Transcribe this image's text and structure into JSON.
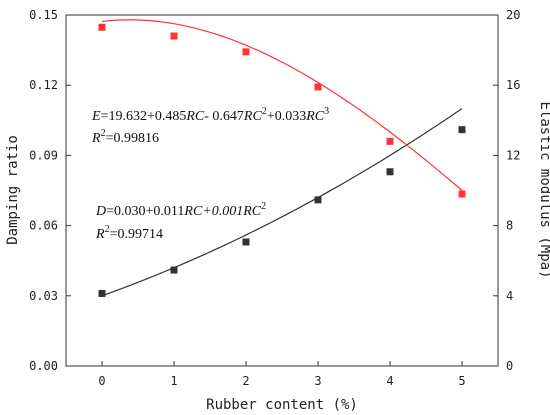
{
  "chart_data": {
    "type": "line",
    "x": [
      0,
      1,
      2,
      3,
      4,
      5
    ],
    "x_ticks": [
      "0",
      "1",
      "2",
      "3",
      "4",
      "5"
    ],
    "xlabel": "Rubber content (%)",
    "xlim": [
      -0.5,
      5.5
    ],
    "ylabel_left": "Damping ratio",
    "ylim_left": [
      0.0,
      0.15
    ],
    "y_ticks_left": [
      "0.00",
      "0.03",
      "0.06",
      "0.09",
      "0.12",
      "0.15"
    ],
    "ylabel_right": "Elastic modulus (Mpa)",
    "ylim_right": [
      0,
      20
    ],
    "y_ticks_right": [
      "0",
      "4",
      "8",
      "12",
      "16",
      "20"
    ],
    "grid": false,
    "series": [
      {
        "axis": "left",
        "color": "#333333",
        "marker": "square",
        "values": [
          0.031,
          0.041,
          0.053,
          0.071,
          0.083,
          0.101
        ],
        "fit_coeffs": [
          0.03,
          0.011,
          0.001
        ]
      },
      {
        "axis": "right",
        "color": "#ff3333",
        "marker": "square",
        "values": [
          19.3,
          18.8,
          17.9,
          15.9,
          12.8,
          9.8
        ],
        "fit_coeffs": [
          19.632,
          0.485,
          -0.647,
          0.033
        ]
      }
    ],
    "annotations": {
      "eq_e": {
        "var": "E",
        "p1": "=19.632+0.485",
        "rc1": "RC",
        "p2": "- 0.647",
        "rc2": "RC",
        "sup2": "2",
        "p3": "+0.033",
        "rc3": "RC",
        "sup3": "3"
      },
      "r2_e": {
        "r": "R",
        "sup": "2",
        "val": "=0.99816"
      },
      "eq_d": {
        "var": "D",
        "p1": "=0.030+0.011",
        "rc1": "RC",
        "p2": "+0.001",
        "rc2": "RC",
        "sup2": "2"
      },
      "r2_d": {
        "r": "R",
        "sup": "2",
        "val": "=0.99714"
      }
    }
  }
}
